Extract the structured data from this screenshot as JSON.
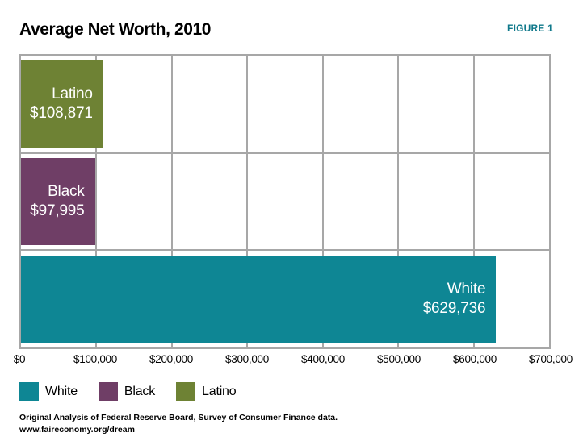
{
  "header": {
    "title": "Average Net Worth, 2010",
    "figure_label": "FIGURE 1"
  },
  "chart_data": {
    "type": "bar",
    "orientation": "horizontal",
    "title": "Average Net Worth, 2010",
    "categories": [
      "Latino",
      "Black",
      "White"
    ],
    "values": [
      108871,
      97995,
      629736
    ],
    "value_labels": [
      "$108,871",
      "$97,995",
      "$629,736"
    ],
    "bar_colors": [
      "#6e8234",
      "#6f3e66",
      "#0e8694"
    ],
    "xlim": [
      0,
      700000
    ],
    "x_ticks": [
      0,
      100000,
      200000,
      300000,
      400000,
      500000,
      600000,
      700000
    ],
    "x_tick_labels": [
      "$0",
      "$100,000",
      "$200,000",
      "$300,000",
      "$400,000",
      "$500,000",
      "$600,000",
      "$700,000"
    ],
    "grid": true,
    "legend_position": "bottom"
  },
  "legend": {
    "items": [
      {
        "label": "White",
        "color": "#0e8694"
      },
      {
        "label": "Black",
        "color": "#6f3e66"
      },
      {
        "label": "Latino",
        "color": "#6e8234"
      }
    ]
  },
  "footer": {
    "source_line": "Original Analysis of Federal Reserve Board, Survey of Consumer Finance data.",
    "url_line": "www.faireconomy.org/dream"
  },
  "colors": {
    "teal": "#0e8694",
    "purple": "#6f3e66",
    "olive": "#6e8234",
    "gridline": "#a7a7a7",
    "figure_label": "#10798b"
  }
}
